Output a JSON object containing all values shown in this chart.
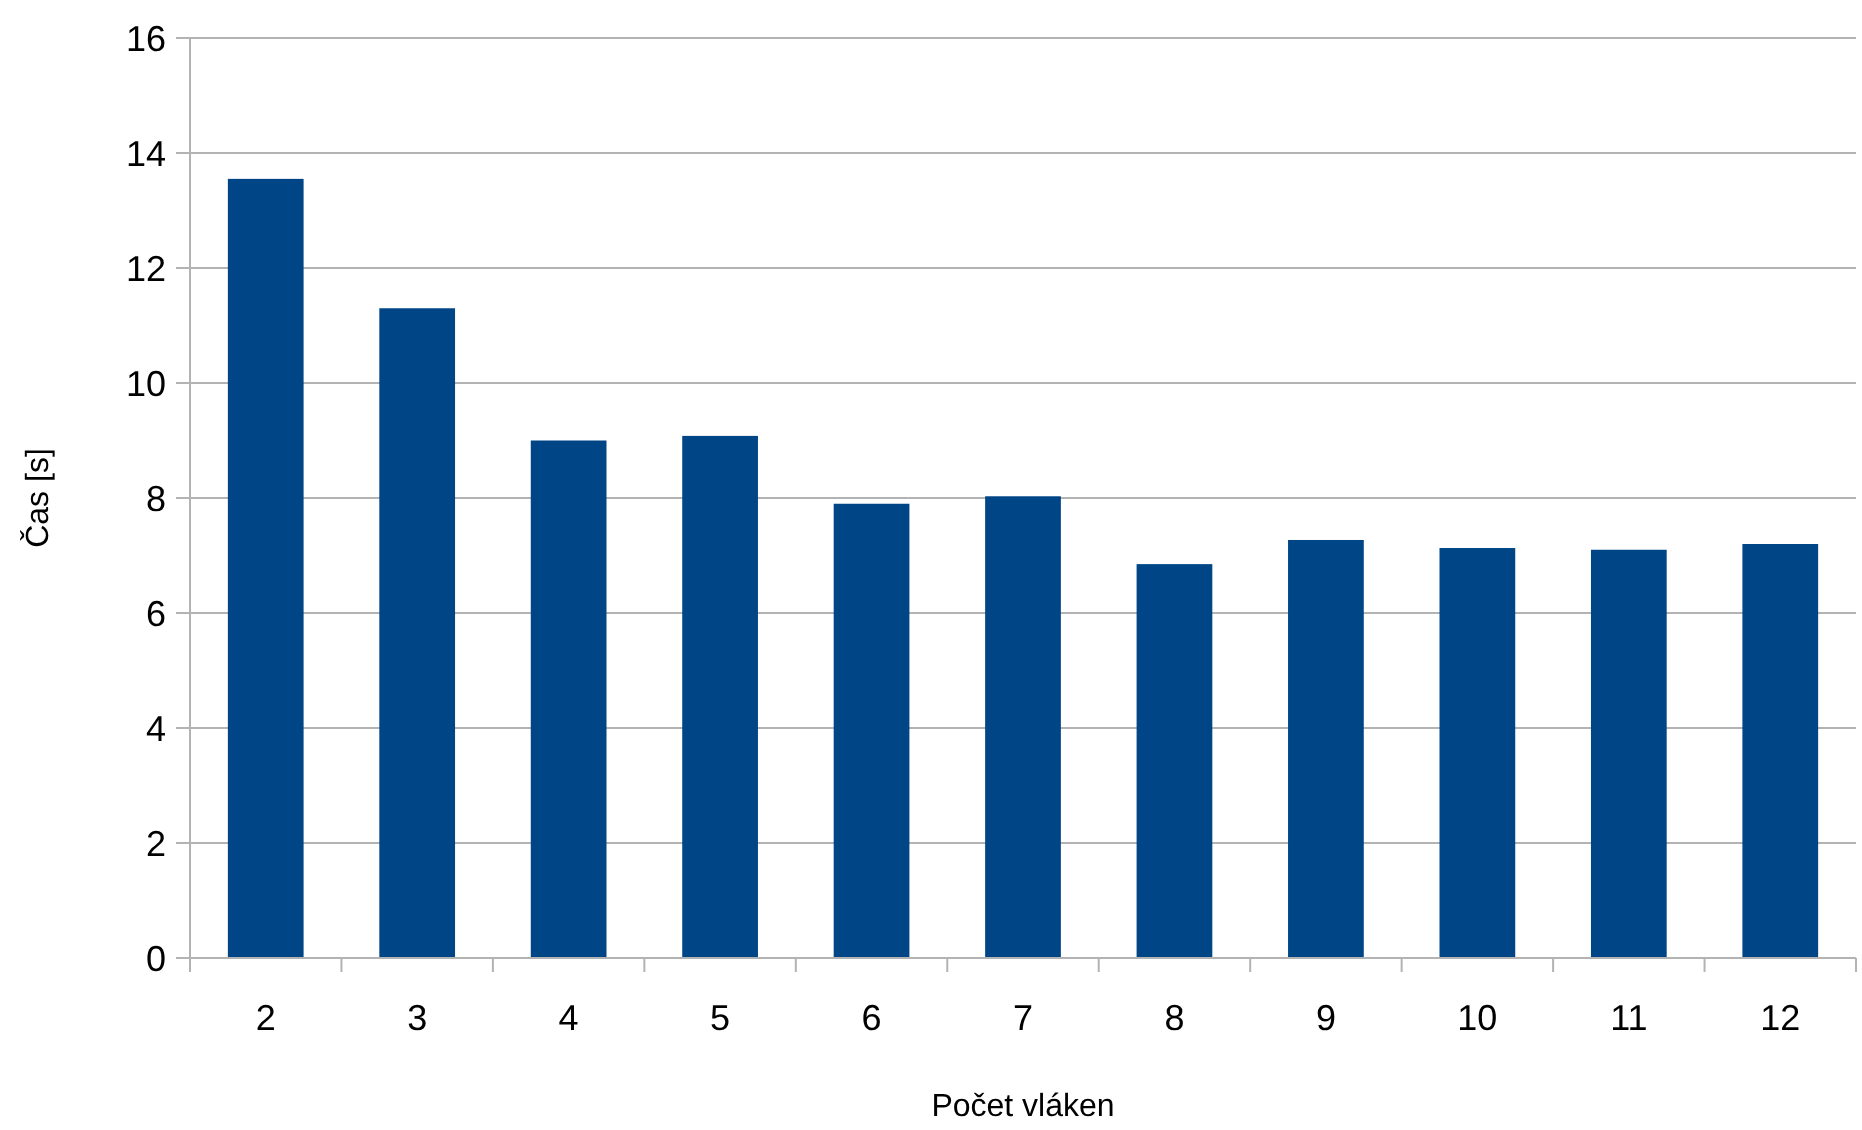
{
  "chart_data": {
    "type": "bar",
    "xlabel": "Počet vláken",
    "ylabel": "Čas [s]",
    "categories": [
      "2",
      "3",
      "4",
      "5",
      "6",
      "7",
      "8",
      "9",
      "10",
      "11",
      "12"
    ],
    "values": [
      13.55,
      11.3,
      9.0,
      9.08,
      7.9,
      8.03,
      6.85,
      7.27,
      7.13,
      7.1,
      7.2
    ],
    "color": "#004586",
    "ylim": [
      0,
      16
    ],
    "yticks": [
      0,
      2,
      4,
      6,
      8,
      10,
      12,
      14,
      16
    ],
    "grid": "y"
  }
}
